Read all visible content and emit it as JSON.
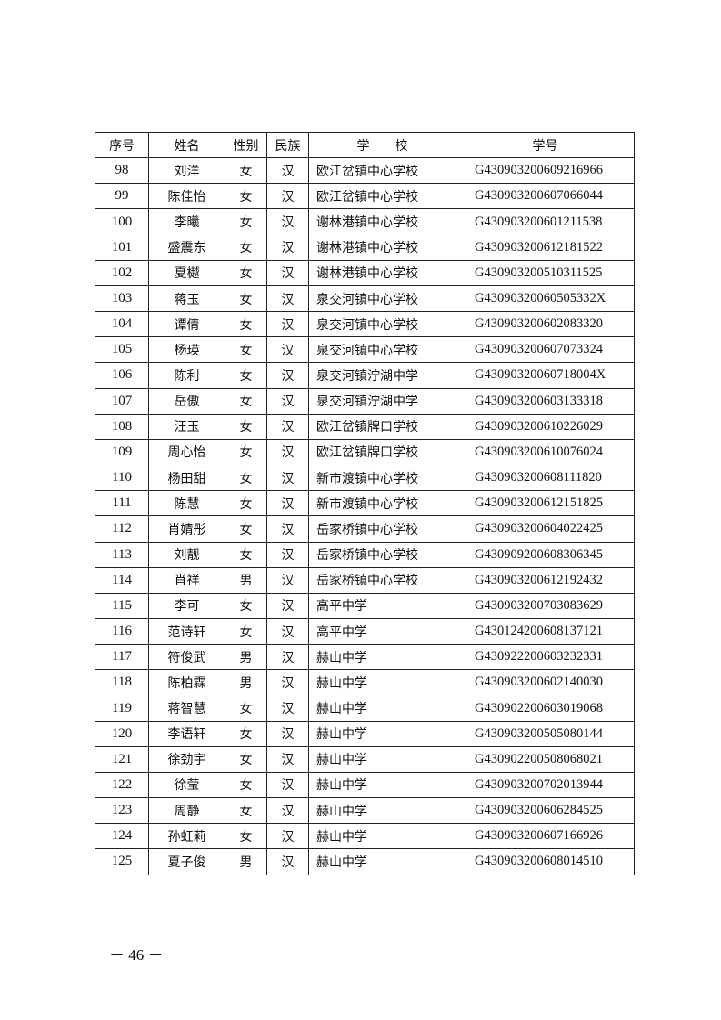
{
  "table": {
    "headers": [
      "序号",
      "姓名",
      "性别",
      "民族",
      "学　　校",
      "学号"
    ],
    "rows": [
      [
        "98",
        "刘洋",
        "女",
        "汉",
        "欧江岔镇中心学校",
        "G430903200609216966"
      ],
      [
        "99",
        "陈佳怡",
        "女",
        "汉",
        "欧江岔镇中心学校",
        "G430903200607066044"
      ],
      [
        "100",
        "李曦",
        "女",
        "汉",
        "谢林港镇中心学校",
        "G430903200601211538"
      ],
      [
        "101",
        "盛震东",
        "女",
        "汉",
        "谢林港镇中心学校",
        "G430903200612181522"
      ],
      [
        "102",
        "夏樾",
        "女",
        "汉",
        "谢林港镇中心学校",
        "G430903200510311525"
      ],
      [
        "103",
        "蒋玉",
        "女",
        "汉",
        "泉交河镇中心学校",
        "G43090320060505332X"
      ],
      [
        "104",
        "谭倩",
        "女",
        "汉",
        "泉交河镇中心学校",
        "G430903200602083320"
      ],
      [
        "105",
        "杨瑛",
        "女",
        "汉",
        "泉交河镇中心学校",
        "G430903200607073324"
      ],
      [
        "106",
        "陈利",
        "女",
        "汉",
        "泉交河镇泞湖中学",
        "G43090320060718004X"
      ],
      [
        "107",
        "岳傲",
        "女",
        "汉",
        "泉交河镇泞湖中学",
        "G430903200603133318"
      ],
      [
        "108",
        "汪玉",
        "女",
        "汉",
        "欧江岔镇牌口学校",
        "G430903200610226029"
      ],
      [
        "109",
        "周心怡",
        "女",
        "汉",
        "欧江岔镇牌口学校",
        "G430903200610076024"
      ],
      [
        "110",
        "杨田甜",
        "女",
        "汉",
        "新市渡镇中心学校",
        "G430903200608111820"
      ],
      [
        "111",
        "陈慧",
        "女",
        "汉",
        "新市渡镇中心学校",
        "G430903200612151825"
      ],
      [
        "112",
        "肖婧彤",
        "女",
        "汉",
        "岳家桥镇中心学校",
        "G430903200604022425"
      ],
      [
        "113",
        "刘靓",
        "女",
        "汉",
        "岳家桥镇中心学校",
        "G430909200608306345"
      ],
      [
        "114",
        "肖祥",
        "男",
        "汉",
        "岳家桥镇中心学校",
        "G430903200612192432"
      ],
      [
        "115",
        "李可",
        "女",
        "汉",
        "高平中学",
        "G430903200703083629"
      ],
      [
        "116",
        "范诗轩",
        "女",
        "汉",
        "高平中学",
        "G430124200608137121"
      ],
      [
        "117",
        "符俊武",
        "男",
        "汉",
        "赫山中学",
        "G430922200603232331"
      ],
      [
        "118",
        "陈柏霖",
        "男",
        "汉",
        "赫山中学",
        "G430903200602140030"
      ],
      [
        "119",
        "蒋智慧",
        "女",
        "汉",
        "赫山中学",
        "G430902200603019068"
      ],
      [
        "120",
        "李语轩",
        "女",
        "汉",
        "赫山中学",
        "G430903200505080144"
      ],
      [
        "121",
        "徐劲宇",
        "女",
        "汉",
        "赫山中学",
        "G430902200508068021"
      ],
      [
        "122",
        "徐莹",
        "女",
        "汉",
        "赫山中学",
        "G430903200702013944"
      ],
      [
        "123",
        "周静",
        "女",
        "汉",
        "赫山中学",
        "G430903200606284525"
      ],
      [
        "124",
        "孙虹莉",
        "女",
        "汉",
        "赫山中学",
        "G430903200607166926"
      ],
      [
        "125",
        "夏子俊",
        "男",
        "汉",
        "赫山中学",
        "G430903200608014510"
      ]
    ]
  },
  "footer": {
    "page_number": "－ 46 －"
  }
}
